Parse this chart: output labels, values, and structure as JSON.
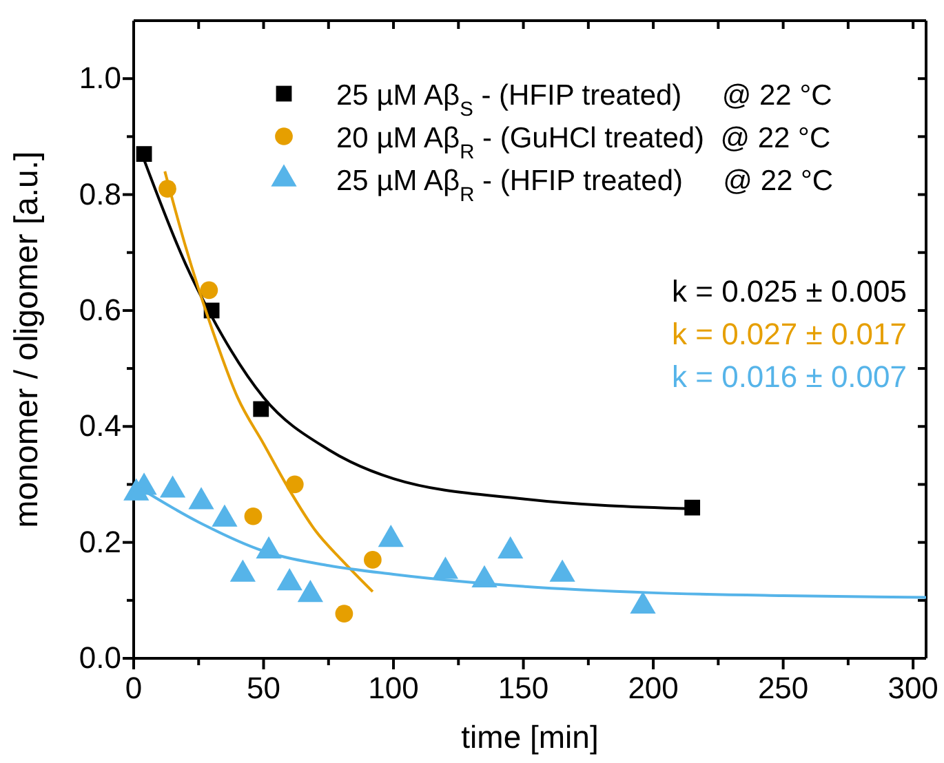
{
  "chart_data": {
    "type": "scatter",
    "xlabel": "time [min]",
    "ylabel": "monomer / oligomer [a.u.]",
    "xlim": [
      0,
      305
    ],
    "ylim": [
      0,
      1.1
    ],
    "xticks": [
      0,
      {
        "value": 25,
        "label": null
      },
      50,
      {
        "value": 75,
        "label": null
      },
      100,
      {
        "value": 125,
        "label": null
      },
      150,
      {
        "value": 175,
        "label": null
      },
      200,
      {
        "value": 225,
        "label": null
      },
      250,
      {
        "value": 275,
        "label": null
      },
      300
    ],
    "yticks": [
      {
        "value": 0,
        "label": "0.0"
      },
      {
        "value": 0.1,
        "label": null
      },
      0.2,
      {
        "value": 0.3,
        "label": null
      },
      0.4,
      {
        "value": 0.5,
        "label": null
      },
      0.6,
      {
        "value": 0.7,
        "label": null
      },
      0.8,
      {
        "value": 0.9,
        "label": null
      },
      {
        "value": 1,
        "label": "1.0"
      }
    ],
    "grid": false,
    "legend": "top right",
    "series": [
      {
        "name": "25 µM Aβ$_{S}$ - (HFIP treated)     @ 22 °C",
        "color": "#000000",
        "marker": "square",
        "x": [
          4,
          30,
          49,
          215
        ],
        "values": [
          0.87,
          0.6,
          0.43,
          0.26
        ]
      },
      {
        "name": "20 µM Aβ$_{R}$ - (GuHCl treated)  @ 22 °C",
        "color": "#e69f00",
        "marker": "circle",
        "x": [
          13,
          29,
          46,
          62,
          81,
          92
        ],
        "values": [
          0.81,
          0.635,
          0.245,
          0.3,
          0.077,
          0.17
        ]
      },
      {
        "name": "25 µM Aβ$_{R}$ - (HFIP treated)     @ 22 °C",
        "color": "#56b4e9",
        "marker": "triangle",
        "x": [
          1,
          4,
          15,
          26,
          35,
          42,
          52,
          60,
          68,
          99,
          120,
          135,
          145,
          165,
          196
        ],
        "values": [
          0.285,
          0.295,
          0.29,
          0.27,
          0.24,
          0.145,
          0.185,
          0.13,
          0.11,
          0.205,
          0.15,
          0.135,
          0.185,
          0.145,
          0.09
        ]
      },
      {
        "type": "line",
        "color": "#000000",
        "marker": "none",
        "x": [
          4,
          20,
          30,
          50,
          75,
          100,
          150,
          215
        ],
        "values": [
          0.86,
          0.68,
          0.59,
          0.45,
          0.36,
          0.31,
          0.275,
          0.258
        ]
      },
      {
        "type": "line",
        "color": "#e69f00",
        "marker": "none",
        "x": [
          12,
          20,
          30,
          40,
          50,
          60,
          70,
          80,
          92
        ],
        "values": [
          0.84,
          0.71,
          0.57,
          0.45,
          0.37,
          0.29,
          0.22,
          0.17,
          0.115
        ]
      },
      {
        "type": "line",
        "color": "#56b4e9",
        "marker": "none",
        "x": [
          0,
          25,
          50,
          75,
          100,
          150,
          200,
          250,
          305
        ],
        "values": [
          0.3,
          0.235,
          0.185,
          0.16,
          0.145,
          0.124,
          0.113,
          0.108,
          0.105
        ]
      }
    ],
    "annotations": [
      "k = 0.025 ± 0.005",
      "k = 0.027 ± 0.017",
      "k = 0.016 ± 0.007"
    ]
  }
}
